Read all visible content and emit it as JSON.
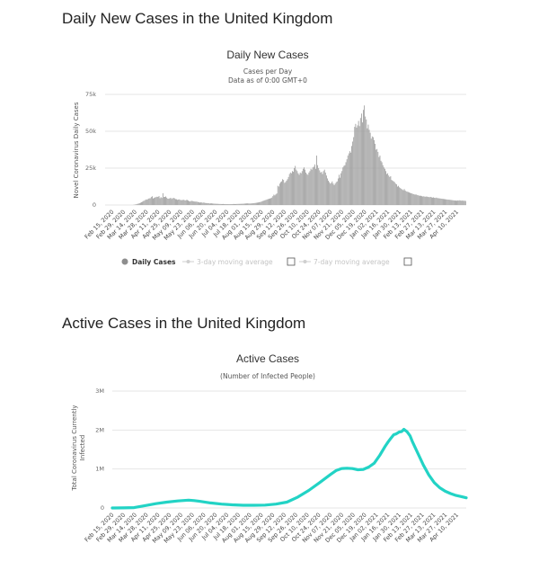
{
  "section_titles": {
    "daily": "Daily New Cases in the United Kingdom",
    "active": "Active Cases in the United Kingdom"
  },
  "colors": {
    "bar": "#9a9a9a",
    "active_line": "#22d3c5",
    "grid": "#e6e6e6",
    "legend_disabled": "#c8c8c8"
  },
  "chart_data": [
    {
      "type": "bar",
      "title": "Daily New Cases",
      "subtitle_lines": [
        "Cases per Day",
        "Data as of 0:00 GMT+0"
      ],
      "ylabel": "Novel Coronavirus Daily Cases",
      "ylim": [
        0,
        75000
      ],
      "yticks": [
        0,
        25000,
        50000,
        75000
      ],
      "ytick_labels": [
        "0",
        "25k",
        "50k",
        "75k"
      ],
      "x_start": "2020-02-15",
      "x_end": "2021-04-14",
      "xtick_labels": [
        "Feb 15, 2020",
        "Feb 29, 2020",
        "Mar 14, 2020",
        "Mar 28, 2020",
        "Apr 11, 2020",
        "Apr 25, 2020",
        "May 09, 2020",
        "May 23, 2020",
        "Jun 06, 2020",
        "Jun 20, 2020",
        "Jul 04, 2020",
        "Jul 18, 2020",
        "Aug 01, 2020",
        "Aug 15, 2020",
        "Aug 29, 2020",
        "Sep 12, 2020",
        "Sep 26, 2020",
        "Oct 10, 2020",
        "Oct 24, 2020",
        "Nov 07, 2020",
        "Nov 21, 2020",
        "Dec 05, 2020",
        "Dec 19, 2020",
        "Jan 02, 2021",
        "Jan 16, 2021",
        "Jan 30, 2021",
        "Feb 13, 2021",
        "Feb 27, 2021",
        "Mar 13, 2021",
        "Mar 27, 2021",
        "Apr 10, 2021"
      ],
      "series": [
        {
          "name": "Daily Cases",
          "values": [
            0,
            0,
            0,
            0,
            0,
            0,
            0,
            0,
            0,
            0,
            0,
            0,
            0,
            0,
            0,
            0,
            0,
            0,
            0,
            0,
            0,
            0,
            0,
            0,
            0,
            0,
            0,
            0,
            0,
            100,
            200,
            400,
            500,
            800,
            1000,
            1200,
            1500,
            1900,
            2200,
            2700,
            2900,
            3400,
            3800,
            3600,
            4300,
            4500,
            4600,
            5400,
            5900,
            4400,
            4800,
            5200,
            5300,
            5600,
            5500,
            6100,
            4600,
            5300,
            4800,
            8000,
            5400,
            5500,
            5800,
            5000,
            4300,
            4200,
            4500,
            4900,
            4100,
            4600,
            4800,
            4500,
            4000,
            3900,
            3500,
            3700,
            3800,
            3400,
            3300,
            3300,
            3600,
            3300,
            3100,
            3400,
            3400,
            3000,
            2600,
            2400,
            2700,
            2800,
            2600,
            2400,
            2300,
            2300,
            2200,
            2000,
            1900,
            1600,
            1800,
            1700,
            1500,
            1700,
            1500,
            1300,
            1300,
            1200,
            1200,
            1000,
            1100,
            1100,
            1000,
            950,
            900,
            880,
            800,
            820,
            740,
            700,
            680,
            650,
            640,
            700,
            580,
            600,
            630,
            620,
            580,
            560,
            580,
            600,
            620,
            650,
            700,
            620,
            660,
            700,
            720,
            750,
            780,
            800,
            820,
            850,
            900,
            950,
            1000,
            1050,
            1100,
            1050,
            1000,
            1000,
            1100,
            1150,
            1200,
            1300,
            1400,
            1500,
            1600,
            1700,
            1900,
            2000,
            2200,
            2500,
            2800,
            3000,
            3300,
            3500,
            3800,
            4000,
            4200,
            4400,
            4600,
            5000,
            6000,
            7000,
            6500,
            7200,
            7800,
            13000,
            12500,
            14500,
            15500,
            16000,
            17500,
            17000,
            15000,
            15500,
            16500,
            17500,
            19000,
            21000,
            22000,
            21500,
            23000,
            22500,
            25000,
            26500,
            24000,
            23000,
            21500,
            20500,
            22000,
            21500,
            23000,
            24500,
            25500,
            24000,
            22000,
            21000,
            20500,
            22000,
            23000,
            24500,
            24000,
            25500,
            26000,
            27500,
            24500,
            33500,
            27000,
            25000,
            23500,
            22000,
            22500,
            21000,
            23000,
            24000,
            22000,
            20000,
            18000,
            16500,
            15500,
            14500,
            15000,
            16000,
            14500,
            13500,
            14500,
            15500,
            16000,
            18000,
            20500,
            18500,
            21500,
            23000,
            25500,
            26500,
            27000,
            29000,
            31000,
            33500,
            35000,
            36500,
            35500,
            40000,
            43000,
            46000,
            53000,
            55000,
            52500,
            54000,
            57000,
            53500,
            59000,
            62000,
            56000,
            64500,
            67500,
            60000,
            58000,
            52000,
            54500,
            51000,
            49000,
            45000,
            46500,
            46000,
            44000,
            41500,
            37500,
            38000,
            36000,
            32500,
            33500,
            30000,
            29000,
            27000,
            25500,
            24500,
            23000,
            21000,
            21500,
            20000,
            19000,
            19500,
            17000,
            16500,
            16000,
            15500,
            14500,
            14000,
            12500,
            13000,
            12000,
            11500,
            11000,
            10500,
            10000,
            10800,
            9800,
            9200,
            9000,
            8800,
            8500,
            8200,
            8000,
            7800,
            7500,
            7300,
            7000,
            7200,
            6800,
            6600,
            6400,
            6200,
            6300,
            6000,
            5800,
            5900,
            5700,
            5600,
            5800,
            5500,
            5400,
            5300,
            5500,
            5200,
            5000,
            5200,
            4900,
            4800,
            5000,
            4700,
            4600,
            4500,
            4400,
            4300,
            4200,
            4100,
            4000,
            3900,
            3800,
            3700,
            3600,
            3600,
            3500,
            3400,
            3300,
            3200,
            3100,
            3000,
            3000,
            2900,
            3100,
            3000,
            3200,
            3000,
            2900,
            3100,
            2800,
            2900,
            2700
          ]
        }
      ],
      "legend": [
        {
          "label": "Daily Cases",
          "active": true
        },
        {
          "label": "3-day moving average",
          "active": false
        },
        {
          "label": "7-day moving average",
          "active": false
        }
      ]
    },
    {
      "type": "line",
      "title": "Active Cases",
      "subtitle_lines": [
        "(Number of Infected People)"
      ],
      "ylabel_lines": [
        "Total Coronavirus Currently",
        "Infected"
      ],
      "ylim": [
        0,
        3000000
      ],
      "yticks": [
        0,
        1000000,
        2000000,
        3000000
      ],
      "ytick_labels": [
        "0",
        "1M",
        "2M",
        "3M"
      ],
      "x_start": "2020-02-15",
      "x_end": "2021-04-14",
      "xtick_labels": [
        "Feb 15, 2020",
        "Feb 29, 2020",
        "Mar 14, 2020",
        "Mar 28, 2020",
        "Apr 11, 2020",
        "Apr 25, 2020",
        "May 09, 2020",
        "May 23, 2020",
        "Jun 06, 2020",
        "Jun 20, 2020",
        "Jul 04, 2020",
        "Jul 18, 2020",
        "Aug 01, 2020",
        "Aug 15, 2020",
        "Aug 29, 2020",
        "Sep 12, 2020",
        "Sep 26, 2020",
        "Oct 10, 2020",
        "Oct 24, 2020",
        "Nov 07, 2020",
        "Nov 21, 2020",
        "Dec 05, 2020",
        "Dec 19, 2020",
        "Jan 02, 2021",
        "Jan 16, 2021",
        "Jan 30, 2021",
        "Feb 13, 2021",
        "Feb 27, 2021",
        "Mar 13, 2021",
        "Mar 27, 2021",
        "Apr 10, 2021"
      ],
      "series": [
        {
          "name": "Active Cases",
          "points": [
            [
              0,
              0
            ],
            [
              14,
              2000
            ],
            [
              28,
              10000
            ],
            [
              42,
              60000
            ],
            [
              56,
              110000
            ],
            [
              70,
              150000
            ],
            [
              84,
              180000
            ],
            [
              98,
              200000
            ],
            [
              105,
              190000
            ],
            [
              112,
              170000
            ],
            [
              126,
              130000
            ],
            [
              140,
              100000
            ],
            [
              154,
              80000
            ],
            [
              168,
              70000
            ],
            [
              182,
              70000
            ],
            [
              196,
              75000
            ],
            [
              210,
              100000
            ],
            [
              224,
              150000
            ],
            [
              238,
              280000
            ],
            [
              252,
              450000
            ],
            [
              266,
              650000
            ],
            [
              280,
              860000
            ],
            [
              287,
              960000
            ],
            [
              294,
              1010000
            ],
            [
              301,
              1020000
            ],
            [
              308,
              1010000
            ],
            [
              315,
              980000
            ],
            [
              322,
              990000
            ],
            [
              329,
              1050000
            ],
            [
              336,
              1150000
            ],
            [
              343,
              1350000
            ],
            [
              350,
              1580000
            ],
            [
              354,
              1700000
            ],
            [
              357,
              1780000
            ],
            [
              361,
              1880000
            ],
            [
              364,
              1900000
            ],
            [
              368,
              1950000
            ],
            [
              371,
              1960000
            ],
            [
              374,
              2020000
            ],
            [
              378,
              1960000
            ],
            [
              382,
              1850000
            ],
            [
              385,
              1700000
            ],
            [
              392,
              1400000
            ],
            [
              399,
              1100000
            ],
            [
              406,
              850000
            ],
            [
              413,
              650000
            ],
            [
              420,
              520000
            ],
            [
              427,
              430000
            ],
            [
              434,
              370000
            ],
            [
              441,
              320000
            ],
            [
              448,
              290000
            ],
            [
              454,
              260000
            ]
          ]
        }
      ]
    }
  ]
}
